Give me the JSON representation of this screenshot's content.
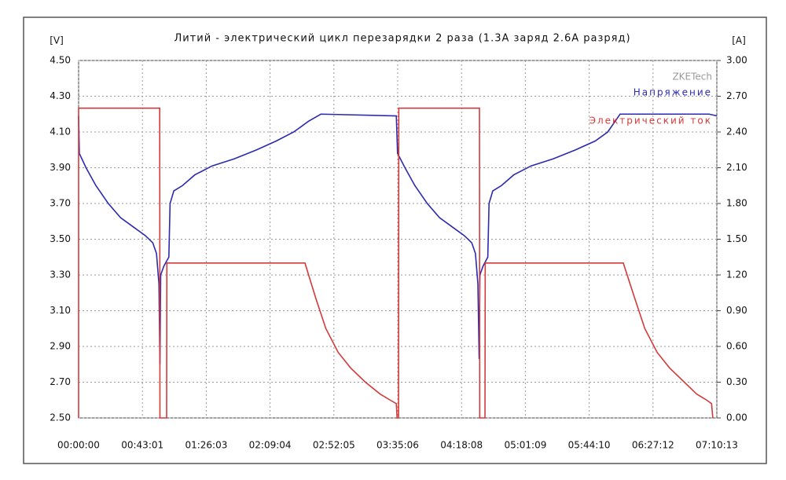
{
  "chart_data": {
    "type": "line",
    "title": "Литий - электрический цикл перезарядки 2 раза (1.3A заряд 2.6A разряд)",
    "y_label": "[V]",
    "y2_label": "[A]",
    "watermark": "ZKETech",
    "xlim": [
      0,
      25813
    ],
    "xticks": [
      {
        "value": 0,
        "label": "00:00:00"
      },
      {
        "value": 2581,
        "label": "00:43:01"
      },
      {
        "value": 5163,
        "label": "01:26:03"
      },
      {
        "value": 7744,
        "label": "02:09:04"
      },
      {
        "value": 10325,
        "label": "02:52:05"
      },
      {
        "value": 12906,
        "label": "03:35:06"
      },
      {
        "value": 15488,
        "label": "04:18:08"
      },
      {
        "value": 18069,
        "label": "05:01:09"
      },
      {
        "value": 20650,
        "label": "05:44:10"
      },
      {
        "value": 23232,
        "label": "06:27:12"
      },
      {
        "value": 25813,
        "label": "07:10:13"
      }
    ],
    "ylim": [
      2.5,
      4.5
    ],
    "yticks": [
      {
        "value": 2.5,
        "label": "2.50"
      },
      {
        "value": 2.7,
        "label": "2.70"
      },
      {
        "value": 2.9,
        "label": "2.90"
      },
      {
        "value": 3.1,
        "label": "3.10"
      },
      {
        "value": 3.3,
        "label": "3.30"
      },
      {
        "value": 3.5,
        "label": "3.50"
      },
      {
        "value": 3.7,
        "label": "3.70"
      },
      {
        "value": 3.9,
        "label": "3.90"
      },
      {
        "value": 4.1,
        "label": "4.10"
      },
      {
        "value": 4.3,
        "label": "4.30"
      },
      {
        "value": 4.5,
        "label": "4.50"
      }
    ],
    "y2lim": [
      0,
      3
    ],
    "y2ticks": [
      {
        "value": 0,
        "label": "0.00"
      },
      {
        "value": 0.3,
        "label": "0.30"
      },
      {
        "value": 0.6,
        "label": "0.60"
      },
      {
        "value": 0.9,
        "label": "0.90"
      },
      {
        "value": 1.2,
        "label": "1.20"
      },
      {
        "value": 1.5,
        "label": "1.50"
      },
      {
        "value": 1.8,
        "label": "1.80"
      },
      {
        "value": 2.1,
        "label": "2.10"
      },
      {
        "value": 2.4,
        "label": "2.40"
      },
      {
        "value": 2.7,
        "label": "2.70"
      },
      {
        "value": 3,
        "label": "3.00"
      }
    ],
    "grid": true,
    "legend": "upper right",
    "series": [
      {
        "name": "Напряжение",
        "color": "#2b2bb0",
        "axis": "y",
        "x": [
          0,
          30,
          300,
          700,
          1200,
          1700,
          2200,
          2700,
          3000,
          3150,
          3250,
          3290,
          3320,
          3450,
          3650,
          3700,
          3850,
          4200,
          4700,
          5400,
          6300,
          7200,
          8000,
          8700,
          9300,
          9800,
          12850,
          12900,
          13200,
          13600,
          14100,
          14600,
          15100,
          15600,
          15900,
          16050,
          16150,
          16200,
          16230,
          16360,
          16550,
          16600,
          16750,
          17100,
          17600,
          18300,
          19200,
          20100,
          20900,
          21400,
          21900,
          25500,
          25813
        ],
        "values": [
          4.19,
          3.98,
          3.9,
          3.8,
          3.7,
          3.62,
          3.57,
          3.52,
          3.48,
          3.42,
          3.25,
          2.8,
          3.3,
          3.35,
          3.4,
          3.7,
          3.77,
          3.8,
          3.86,
          3.91,
          3.95,
          4.0,
          4.05,
          4.1,
          4.16,
          4.2,
          4.19,
          3.98,
          3.9,
          3.8,
          3.7,
          3.62,
          3.57,
          3.52,
          3.48,
          3.42,
          3.25,
          2.83,
          3.3,
          3.35,
          3.4,
          3.7,
          3.77,
          3.8,
          3.86,
          3.91,
          3.95,
          4.0,
          4.05,
          4.1,
          4.2,
          4.2,
          4.19
        ]
      },
      {
        "name": "Электрический ток",
        "color": "#d43a3a",
        "axis": "y2",
        "x": [
          0,
          0,
          3280,
          3290,
          3560,
          3570,
          9155,
          9600,
          10000,
          10500,
          11000,
          11600,
          12200,
          12600,
          12850,
          12880,
          12940,
          12950,
          16213,
          16223,
          16436,
          16446,
          22030,
          22500,
          22900,
          23400,
          23900,
          24500,
          25000,
          25400,
          25600,
          25650
        ],
        "values": [
          0,
          2.6,
          2.6,
          0,
          0,
          1.3,
          1.3,
          1.0,
          0.75,
          0.55,
          0.42,
          0.3,
          0.2,
          0.15,
          0.12,
          0,
          0,
          2.6,
          2.6,
          0,
          0,
          1.3,
          1.3,
          1.0,
          0.75,
          0.55,
          0.42,
          0.3,
          0.2,
          0.15,
          0.12,
          0
        ]
      }
    ]
  }
}
